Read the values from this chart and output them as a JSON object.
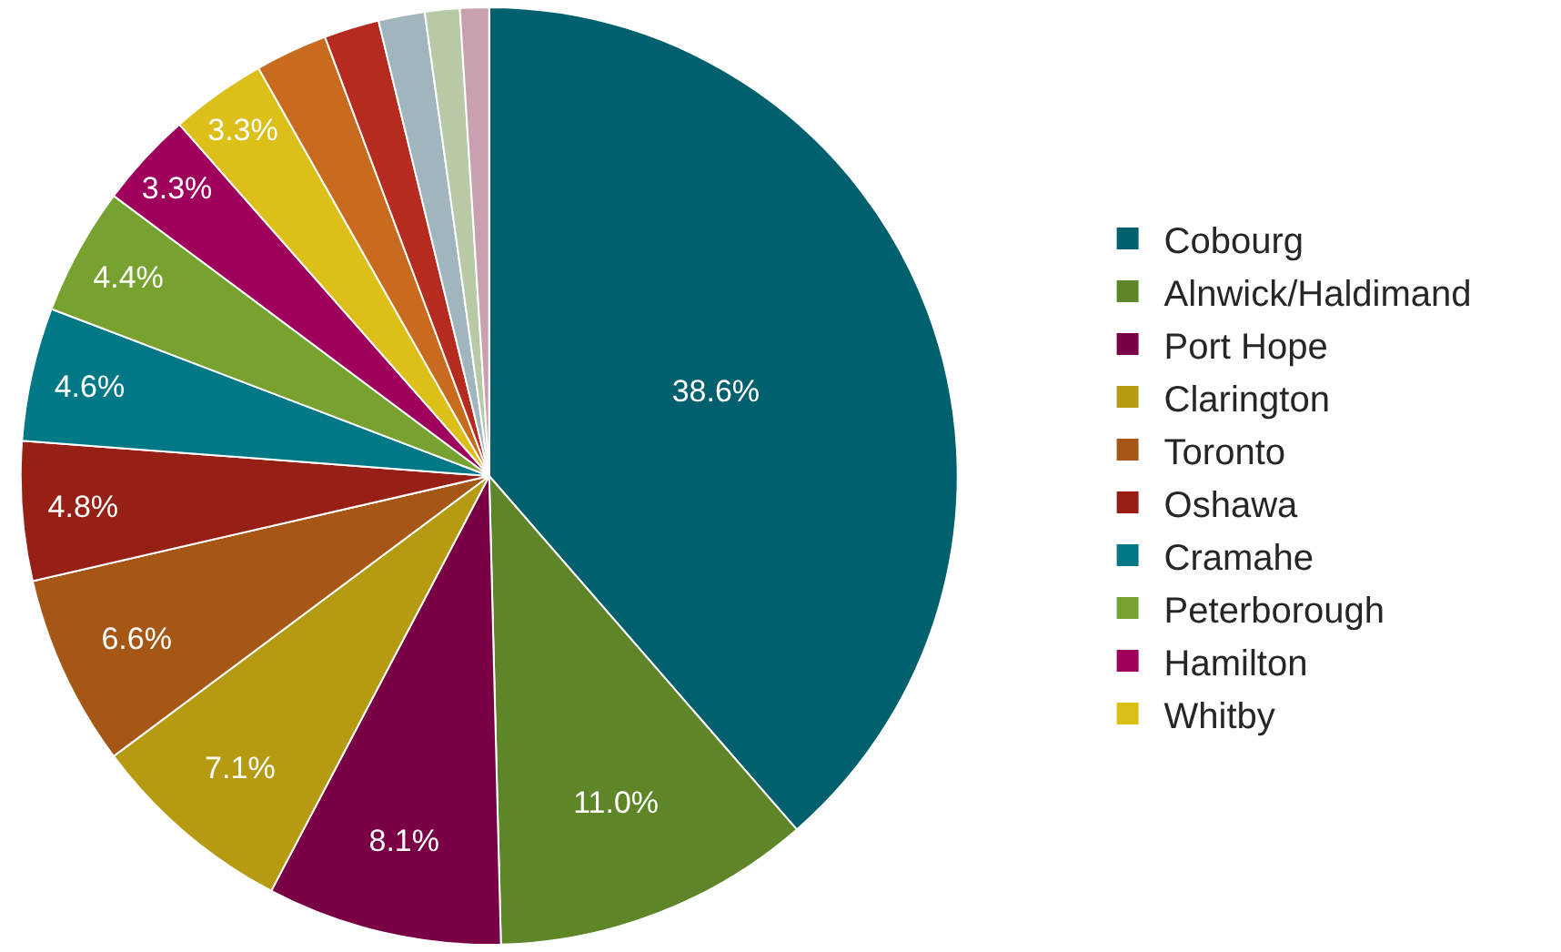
{
  "chart_data": {
    "type": "pie",
    "categories": [
      "Cobourg",
      "Alnwick/Haldimand",
      "Port Hope",
      "Clarington",
      "Toronto",
      "Oshawa",
      "Cramahe",
      "Peterborough",
      "Hamilton",
      "Whitby",
      null,
      null,
      null,
      null,
      null
    ],
    "values": [
      38.6,
      11.0,
      8.1,
      7.1,
      6.6,
      4.8,
      4.6,
      4.4,
      3.3,
      3.3,
      2.5,
      1.9,
      1.6,
      1.2,
      1.0
    ],
    "value_labels": [
      "38.6%",
      "11.0%",
      "8.1%",
      "7.1%",
      "6.6%",
      "4.8%",
      "4.6%",
      "4.4%",
      "3.3%",
      "3.3%",
      null,
      null,
      null,
      null,
      null
    ],
    "colors": [
      "#00606e",
      "#5e8527",
      "#7a0045",
      "#b59a12",
      "#a65716",
      "#962015",
      "#007885",
      "#78a22f",
      "#9e005c",
      "#dcbf19",
      "#c96b1e",
      "#b52b20",
      "#a0b5bd",
      "#b8c9a6",
      "#c9a0b0"
    ],
    "legend": "right"
  }
}
